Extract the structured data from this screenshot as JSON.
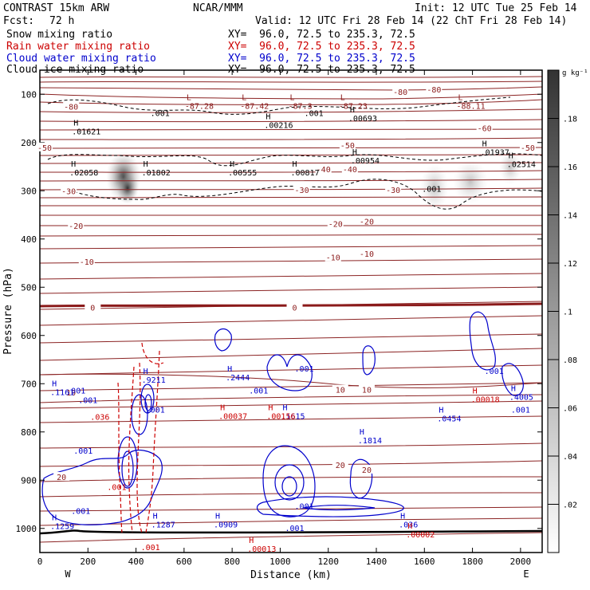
{
  "header": {
    "model": "CONTRAST 15km ARW",
    "center": "NCAR/MMM",
    "init": "Init: 12 UTC Tue 25 Feb 14",
    "fcst_label": "Fcst:",
    "fcst_value": "72 h",
    "valid": "Valid: 12 UTC Fri 28 Feb 14 (22 ChT Fri 28 Feb 14)",
    "fields": [
      {
        "name": "Snow mixing ratio",
        "xy": "XY=  96.0, 72.5 to 235.3, 72.5",
        "color": "#000000"
      },
      {
        "name": "Rain water mixing ratio",
        "xy": "XY=  96.0, 72.5 to 235.3, 72.5",
        "color": "#cc0000"
      },
      {
        "name": "Cloud water mixing ratio",
        "xy": "XY=  96.0, 72.5 to 235.3, 72.5",
        "color": "#0000cc"
      },
      {
        "name": "Cloud ice mixing ratio",
        "xy": "XY=  96.0, 72.5 to 235.3, 72.5",
        "color": "#000000"
      }
    ]
  },
  "chart_data": {
    "type": "cross-section contour",
    "xlabel": "Distance (km)",
    "ylabel": "Pressure (hPa)",
    "xlim": [
      0,
      2090
    ],
    "ylim": [
      1050,
      50
    ],
    "x_ticks": [
      0,
      200,
      400,
      600,
      800,
      1000,
      1200,
      1400,
      1600,
      1800,
      2000
    ],
    "y_ticks": [
      100,
      200,
      300,
      400,
      500,
      600,
      700,
      800,
      900,
      1000
    ],
    "x_end_labels": {
      "left": "W",
      "right": "E"
    },
    "colorbar": {
      "unit": "g kg⁻¹",
      "ticks": [
        ".02",
        ".04",
        ".06",
        ".08",
        ".1",
        ".12",
        ".14",
        ".16",
        ".18"
      ]
    },
    "temperature_contours": [
      {
        "label": "-80",
        "x": 130,
        "p": 125
      },
      {
        "label": "-80",
        "x": 1500,
        "p": 95
      },
      {
        "label": "-80",
        "x": 1640,
        "p": 90
      },
      {
        "label": "-60",
        "x": 1850,
        "p": 170
      },
      {
        "label": "-50",
        "x": 20,
        "p": 210
      },
      {
        "label": "-50",
        "x": 1280,
        "p": 205
      },
      {
        "label": "-50",
        "x": 2030,
        "p": 210
      },
      {
        "label": "-40",
        "x": 1180,
        "p": 255
      },
      {
        "label": "-40",
        "x": 1290,
        "p": 255
      },
      {
        "label": "-30",
        "x": 120,
        "p": 300
      },
      {
        "label": "-30",
        "x": 1090,
        "p": 298
      },
      {
        "label": "-30",
        "x": 1470,
        "p": 298
      },
      {
        "label": "-20",
        "x": 150,
        "p": 372
      },
      {
        "label": "-20",
        "x": 1230,
        "p": 368
      },
      {
        "label": "-20",
        "x": 1360,
        "p": 363
      },
      {
        "label": "-10",
        "x": 195,
        "p": 447
      },
      {
        "label": "-10",
        "x": 1220,
        "p": 438
      },
      {
        "label": "-10",
        "x": 1360,
        "p": 430
      },
      {
        "label": "0",
        "x": 220,
        "p": 542
      },
      {
        "label": "0",
        "x": 1060,
        "p": 542
      },
      {
        "label": "10",
        "x": 130,
        "p": 718
      },
      {
        "label": "10",
        "x": 1250,
        "p": 712
      },
      {
        "label": "10",
        "x": 1360,
        "p": 712
      },
      {
        "label": "20",
        "x": 90,
        "p": 893
      },
      {
        "label": "20",
        "x": 1250,
        "p": 868
      },
      {
        "label": "20",
        "x": 1360,
        "p": 878
      }
    ],
    "maxima": [
      {
        "mark": "L",
        "value": "-87.28",
        "x": 610,
        "p": 112,
        "color": "#8b1a1a"
      },
      {
        "mark": "L",
        "value": "-87.42",
        "x": 840,
        "p": 112,
        "color": "#8b1a1a"
      },
      {
        "mark": "L",
        "value": "-87.3",
        "x": 1040,
        "p": 112,
        "color": "#8b1a1a"
      },
      {
        "mark": "L",
        "value": "-87.23",
        "x": 1250,
        "p": 112,
        "color": "#8b1a1a"
      },
      {
        "mark": "L",
        "value": "-88.11",
        "x": 1740,
        "p": 112,
        "color": "#8b1a1a"
      },
      {
        "mark": "H",
        "value": ".01621",
        "x": 140,
        "p": 165,
        "color": "#000000"
      },
      {
        "mark": "H",
        "value": ".00216",
        "x": 940,
        "p": 152,
        "color": "#000000"
      },
      {
        "mark": "H",
        "value": ".00693",
        "x": 1290,
        "p": 138,
        "color": "#000000"
      },
      {
        "mark": "H",
        "value": ".02058",
        "x": 130,
        "p": 250,
        "color": "#000000"
      },
      {
        "mark": "H",
        "value": ".01802",
        "x": 430,
        "p": 250,
        "color": "#000000"
      },
      {
        "mark": "H",
        "value": ".00555",
        "x": 790,
        "p": 250,
        "color": "#000000"
      },
      {
        "mark": "H",
        "value": ".00817",
        "x": 1050,
        "p": 250,
        "color": "#000000"
      },
      {
        "mark": "H",
        "value": ".00954",
        "x": 1300,
        "p": 225,
        "color": "#000000"
      },
      {
        "mark": "H",
        "value": ".01937",
        "x": 1840,
        "p": 208,
        "color": "#000000"
      },
      {
        "mark": "H",
        "value": ".02514",
        "x": 1950,
        "p": 233,
        "color": "#000000"
      },
      {
        "mark": "H",
        "value": ".9211",
        "x": 430,
        "p": 680,
        "color": "#0000cc"
      },
      {
        "mark": "H",
        "value": ".2444",
        "x": 780,
        "p": 675,
        "color": "#0000cc"
      },
      {
        "mark": "H",
        "value": ".1161",
        "x": 50,
        "p": 705,
        "color": "#0000cc"
      },
      {
        "mark": "H",
        "value": ".1615",
        "x": 1010,
        "p": 755,
        "color": "#0000cc"
      },
      {
        "mark": "H",
        "value": ".1814",
        "x": 1330,
        "p": 805,
        "color": "#0000cc"
      },
      {
        "mark": "H",
        "value": ".0454",
        "x": 1660,
        "p": 760,
        "color": "#0000cc"
      },
      {
        "mark": "H",
        "value": ".4005",
        "x": 1960,
        "p": 715,
        "color": "#0000cc"
      },
      {
        "mark": "H",
        "value": ".1259",
        "x": 50,
        "p": 983,
        "color": "#0000cc"
      },
      {
        "mark": "H",
        "value": ".1287",
        "x": 470,
        "p": 980,
        "color": "#0000cc"
      },
      {
        "mark": "H",
        "value": ".0909",
        "x": 730,
        "p": 980,
        "color": "#0000cc"
      },
      {
        "mark": "H",
        "value": ".036",
        "x": 1500,
        "p": 980,
        "color": "#0000cc"
      },
      {
        "mark": "H",
        "value": ".00037",
        "x": 750,
        "p": 755,
        "color": "#cc0000"
      },
      {
        "mark": "H",
        "value": ".00156",
        "x": 950,
        "p": 755,
        "color": "#cc0000"
      },
      {
        "mark": "H",
        "value": ".00018",
        "x": 1800,
        "p": 720,
        "color": "#cc0000"
      },
      {
        "mark": "H",
        "value": ".00013",
        "x": 870,
        "p": 1030,
        "color": "#cc0000"
      },
      {
        "mark": "H",
        "value": ".00002",
        "x": 1530,
        "p": 1000,
        "color": "#cc0000"
      }
    ],
    "contour_value_labels": [
      {
        "text": ".001",
        "x": 500,
        "p": 145,
        "color": "#000000"
      },
      {
        "text": ".001",
        "x": 1140,
        "p": 145,
        "color": "#000000"
      },
      {
        "text": ".001",
        "x": 1630,
        "p": 302,
        "color": "#000000"
      },
      {
        "text": ".001",
        "x": 150,
        "p": 720,
        "color": "#0000cc"
      },
      {
        "text": ".001",
        "x": 200,
        "p": 740,
        "color": "#0000cc"
      },
      {
        "text": ".001",
        "x": 480,
        "p": 760,
        "color": "#0000cc"
      },
      {
        "text": ".001",
        "x": 180,
        "p": 845,
        "color": "#0000cc"
      },
      {
        "text": ".001",
        "x": 1100,
        "p": 675,
        "color": "#0000cc"
      },
      {
        "text": ".001",
        "x": 1890,
        "p": 680,
        "color": "#0000cc"
      },
      {
        "text": ".001",
        "x": 2000,
        "p": 760,
        "color": "#0000cc"
      },
      {
        "text": ".001",
        "x": 910,
        "p": 720,
        "color": "#0000cc"
      },
      {
        "text": ".001",
        "x": 170,
        "p": 970,
        "color": "#0000cc"
      },
      {
        "text": ".001",
        "x": 1100,
        "p": 960,
        "color": "#0000cc"
      },
      {
        "text": ".001",
        "x": 1060,
        "p": 1005,
        "color": "#0000cc"
      },
      {
        "text": ".036",
        "x": 250,
        "p": 775,
        "color": "#cc0000"
      },
      {
        "text": ".001",
        "x": 320,
        "p": 920,
        "color": "#cc0000"
      },
      {
        "text": ".001",
        "x": 460,
        "p": 1045,
        "color": "#cc0000"
      }
    ]
  }
}
